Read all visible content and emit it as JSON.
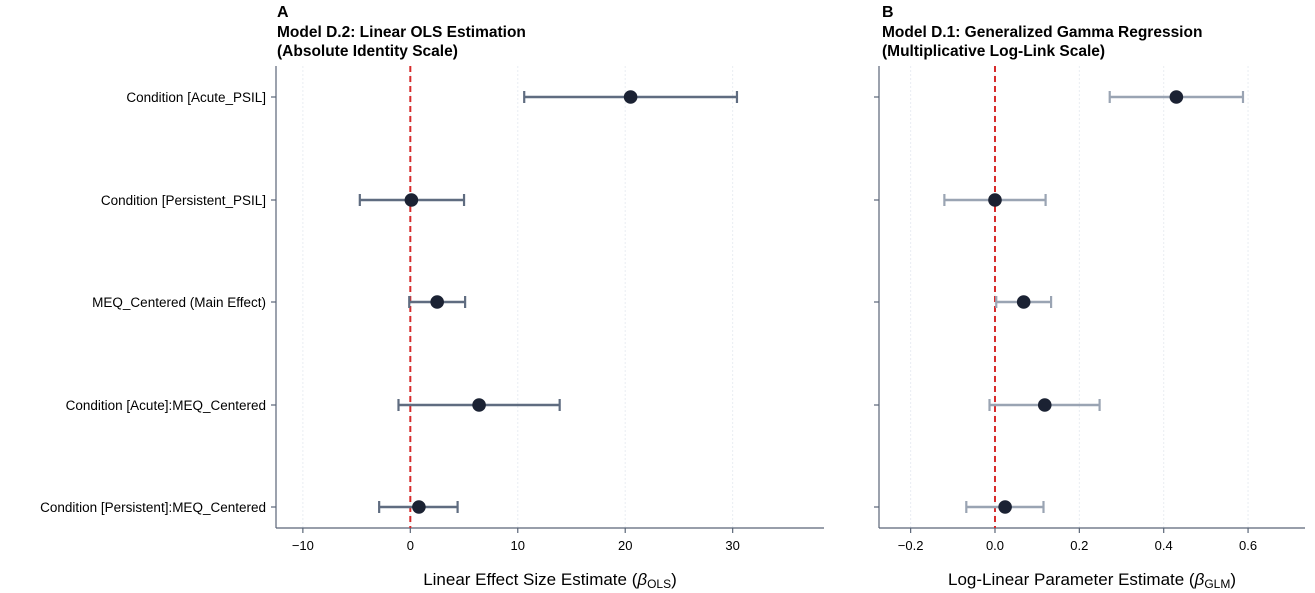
{
  "categories": [
    "Condition [Acute_PSIL]",
    "Condition [Persistent_PSIL]",
    "MEQ_Centered (Main Effect)",
    "Condition [Acute]:MEQ_Centered",
    "Condition [Persistent]:MEQ_Centered"
  ],
  "colors": {
    "point": "#1b2233",
    "ref_line": "#d62b2b",
    "axis": "#5a6577",
    "grid": "#e9edf2"
  },
  "chart_data": [
    {
      "type": "scatter",
      "panel_letter": "A",
      "title_line1": "Model D.2: Linear OLS Estimation",
      "title_line2": "(Absolute Identity Scale)",
      "xlabel_main": "Linear Effect Size Estimate (",
      "xlabel_symbol": "β",
      "xlabel_sub": "OLS",
      "xlabel_close": ")",
      "xlim": [
        -12.5,
        38.5
      ],
      "xticks": [
        -10,
        0,
        10,
        20,
        30
      ],
      "xtick_labels": [
        "−10",
        "0",
        "10",
        "20",
        "30"
      ],
      "reference_line": 0,
      "grid": "vertical",
      "errorbar_color": "#5f6c80",
      "estimates": [
        20.5,
        0.1,
        2.5,
        6.4,
        0.8
      ],
      "ci_low": [
        10.6,
        -4.7,
        -0.1,
        -1.1,
        -2.9
      ],
      "ci_high": [
        30.4,
        5.0,
        5.1,
        13.9,
        4.4
      ]
    },
    {
      "type": "scatter",
      "panel_letter": "B",
      "title_line1": "Model D.1: Generalized Gamma Regression",
      "title_line2": "(Multiplicative Log-Link Scale)",
      "xlabel_main": "Log-Linear Parameter Estimate (",
      "xlabel_symbol": "β",
      "xlabel_sub": "GLM",
      "xlabel_close": ")",
      "xlim": [
        -0.275,
        0.735
      ],
      "xticks": [
        -0.2,
        0.0,
        0.2,
        0.4,
        0.6
      ],
      "xtick_labels": [
        "−0.2",
        "0.0",
        "0.2",
        "0.4",
        "0.6"
      ],
      "reference_line": 0,
      "grid": "vertical",
      "errorbar_color": "#9aa4b3",
      "estimates": [
        0.43,
        0.0,
        0.068,
        0.118,
        0.024
      ],
      "ci_low": [
        0.272,
        -0.12,
        0.003,
        -0.013,
        -0.068
      ],
      "ci_high": [
        0.588,
        0.12,
        0.133,
        0.248,
        0.115
      ]
    }
  ]
}
